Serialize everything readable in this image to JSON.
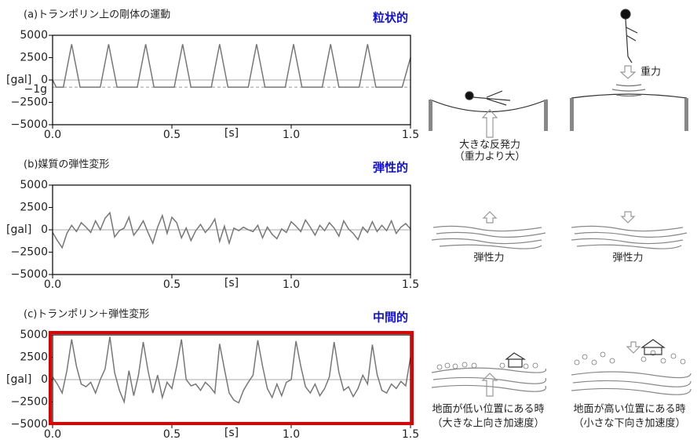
{
  "chart_data": [
    {
      "type": "line",
      "title": "(a)トランポリン上の剛体の運動",
      "tag": "粒状的",
      "xlabel": "[s]",
      "ylabel": "[gal]",
      "xlim": [
        0,
        1.5
      ],
      "xticks": [
        {
          "value": 0,
          "label": "0.0"
        },
        0.5,
        {
          "value": 1,
          "label": "1.0"
        },
        {
          "value": 1.5,
          "label": "1.5"
        }
      ],
      "ylim": [
        -5000,
        5000
      ],
      "yticks": [
        5000,
        2500,
        0,
        {
          "value": -2500,
          "label": "−2500"
        },
        {
          "value": -5000,
          "label": "−5000"
        }
      ],
      "hline": {
        "value": -800,
        "label": "−1g"
      },
      "color": "#777777",
      "x": [
        0,
        0.015,
        0.045,
        0.08,
        0.115,
        0.2,
        0.235,
        0.27,
        0.355,
        0.39,
        0.425,
        0.51,
        0.545,
        0.58,
        0.665,
        0.7,
        0.735,
        0.82,
        0.855,
        0.89,
        0.975,
        1.01,
        1.045,
        1.13,
        1.165,
        1.2,
        1.285,
        1.32,
        1.355,
        1.465,
        1.5
      ],
      "values": [
        0,
        -800,
        -800,
        4000,
        -800,
        -800,
        4000,
        -800,
        -800,
        4000,
        -800,
        -800,
        4000,
        -800,
        -800,
        4000,
        -800,
        -800,
        4000,
        -800,
        -800,
        4000,
        -800,
        -800,
        4000,
        -800,
        -800,
        4000,
        -800,
        -800,
        2500
      ]
    },
    {
      "type": "line",
      "title": "(b)媒質の弾性変形",
      "tag": "弾性的",
      "xlabel": "[s]",
      "ylabel": "[gal]",
      "xlim": [
        0,
        1.5
      ],
      "xticks": [
        {
          "value": 0,
          "label": "0.0"
        },
        0.5,
        {
          "value": 1,
          "label": "1.0"
        },
        {
          "value": 1.5,
          "label": "1.5"
        }
      ],
      "ylim": [
        -5000,
        5000
      ],
      "yticks": [
        5000,
        2500,
        0,
        {
          "value": -2500,
          "label": "−2500"
        },
        {
          "value": -5000,
          "label": "−5000"
        }
      ],
      "color": "#777777",
      "x": [
        0,
        0.02,
        0.04,
        0.06,
        0.08,
        0.1,
        0.12,
        0.14,
        0.16,
        0.18,
        0.2,
        0.22,
        0.24,
        0.26,
        0.28,
        0.3,
        0.32,
        0.34,
        0.36,
        0.38,
        0.4,
        0.42,
        0.44,
        0.46,
        0.48,
        0.5,
        0.52,
        0.54,
        0.56,
        0.58,
        0.6,
        0.62,
        0.64,
        0.66,
        0.68,
        0.7,
        0.72,
        0.74,
        0.76,
        0.78,
        0.8,
        0.82,
        0.84,
        0.86,
        0.88,
        0.9,
        0.92,
        0.94,
        0.96,
        0.98,
        1,
        1.02,
        1.04,
        1.06,
        1.08,
        1.1,
        1.12,
        1.14,
        1.16,
        1.18,
        1.2,
        1.22,
        1.24,
        1.26,
        1.28,
        1.3,
        1.32,
        1.34,
        1.36,
        1.38,
        1.4,
        1.42,
        1.44,
        1.46,
        1.48,
        1.5
      ],
      "values": [
        -300,
        -1200,
        -2000,
        -400,
        500,
        -200,
        800,
        300,
        -300,
        1000,
        0,
        1300,
        1900,
        -800,
        -100,
        200,
        1400,
        -600,
        100,
        1000,
        -300,
        -1500,
        300,
        1600,
        -400,
        1400,
        800,
        -900,
        200,
        -1200,
        -100,
        600,
        -300,
        300,
        1200,
        -1300,
        400,
        -1500,
        200,
        -100,
        300,
        0,
        -200,
        500,
        -900,
        300,
        -500,
        -1000,
        100,
        -300,
        900,
        400,
        -200,
        1100,
        300,
        -600,
        500,
        -100,
        800,
        200,
        -700,
        1000,
        100,
        -400,
        -1100,
        300,
        -300,
        900,
        -200,
        500,
        -100,
        1000,
        -400,
        300,
        700,
        100
      ]
    },
    {
      "type": "line",
      "title": "(c)トランポリン＋弾性変形",
      "tag": "中間的",
      "xlabel": "[s]",
      "ylabel": "[gal]",
      "xlim": [
        0,
        1.5
      ],
      "xticks": [
        {
          "value": 0,
          "label": "0.0"
        },
        0.5,
        {
          "value": 1,
          "label": "1.0"
        },
        {
          "value": 1.5,
          "label": "1.5"
        }
      ],
      "ylim": [
        -5000,
        5000
      ],
      "yticks": [
        5000,
        2500,
        0,
        {
          "value": -2500,
          "label": "−2500"
        },
        {
          "value": -5000,
          "label": "−5000"
        }
      ],
      "color": "#777777",
      "x": [
        0,
        0.02,
        0.04,
        0.06,
        0.08,
        0.1,
        0.12,
        0.14,
        0.16,
        0.18,
        0.2,
        0.22,
        0.24,
        0.26,
        0.28,
        0.3,
        0.32,
        0.34,
        0.36,
        0.38,
        0.4,
        0.42,
        0.44,
        0.46,
        0.48,
        0.5,
        0.52,
        0.54,
        0.56,
        0.58,
        0.6,
        0.62,
        0.64,
        0.66,
        0.68,
        0.7,
        0.72,
        0.74,
        0.76,
        0.78,
        0.8,
        0.82,
        0.84,
        0.86,
        0.88,
        0.9,
        0.92,
        0.94,
        0.96,
        0.98,
        1,
        1.02,
        1.04,
        1.06,
        1.08,
        1.1,
        1.12,
        1.14,
        1.16,
        1.18,
        1.2,
        1.22,
        1.24,
        1.26,
        1.28,
        1.3,
        1.32,
        1.34,
        1.36,
        1.38,
        1.4,
        1.42,
        1.44,
        1.46,
        1.48,
        1.5
      ],
      "values": [
        300,
        -500,
        -1500,
        1000,
        4500,
        1500,
        -500,
        -800,
        -300,
        -1500,
        0,
        1200,
        4800,
        800,
        -1200,
        -2500,
        1000,
        -1800,
        500,
        4200,
        1000,
        -1500,
        500,
        -2000,
        -300,
        -1000,
        1500,
        4500,
        0,
        -700,
        -500,
        -1200,
        -300,
        -800,
        -1500,
        4000,
        1200,
        -1500,
        -2300,
        -2600,
        -1200,
        -300,
        500,
        4400,
        1500,
        -1000,
        -2000,
        -500,
        -1800,
        -300,
        0,
        4300,
        1500,
        -800,
        -1500,
        -500,
        -1800,
        -1000,
        300,
        4200,
        800,
        -1200,
        -800,
        -1900,
        -1000,
        500,
        -500,
        3900,
        600,
        -1200,
        -1500,
        -500,
        -1000,
        -200,
        -700,
        2500
      ]
    }
  ],
  "illustrations": {
    "gravity": "重力",
    "rebound": "大きな反発力",
    "rebound_note": "（重力より大）",
    "elastic_left": "弾性力",
    "elastic_right": "弾性力",
    "low_ground": "地面が低い位置にある時",
    "low_note": "（大きな上向き加速度）",
    "high_ground": "地面が高い位置にある時",
    "high_note": "（小さな下向き加速度）"
  }
}
